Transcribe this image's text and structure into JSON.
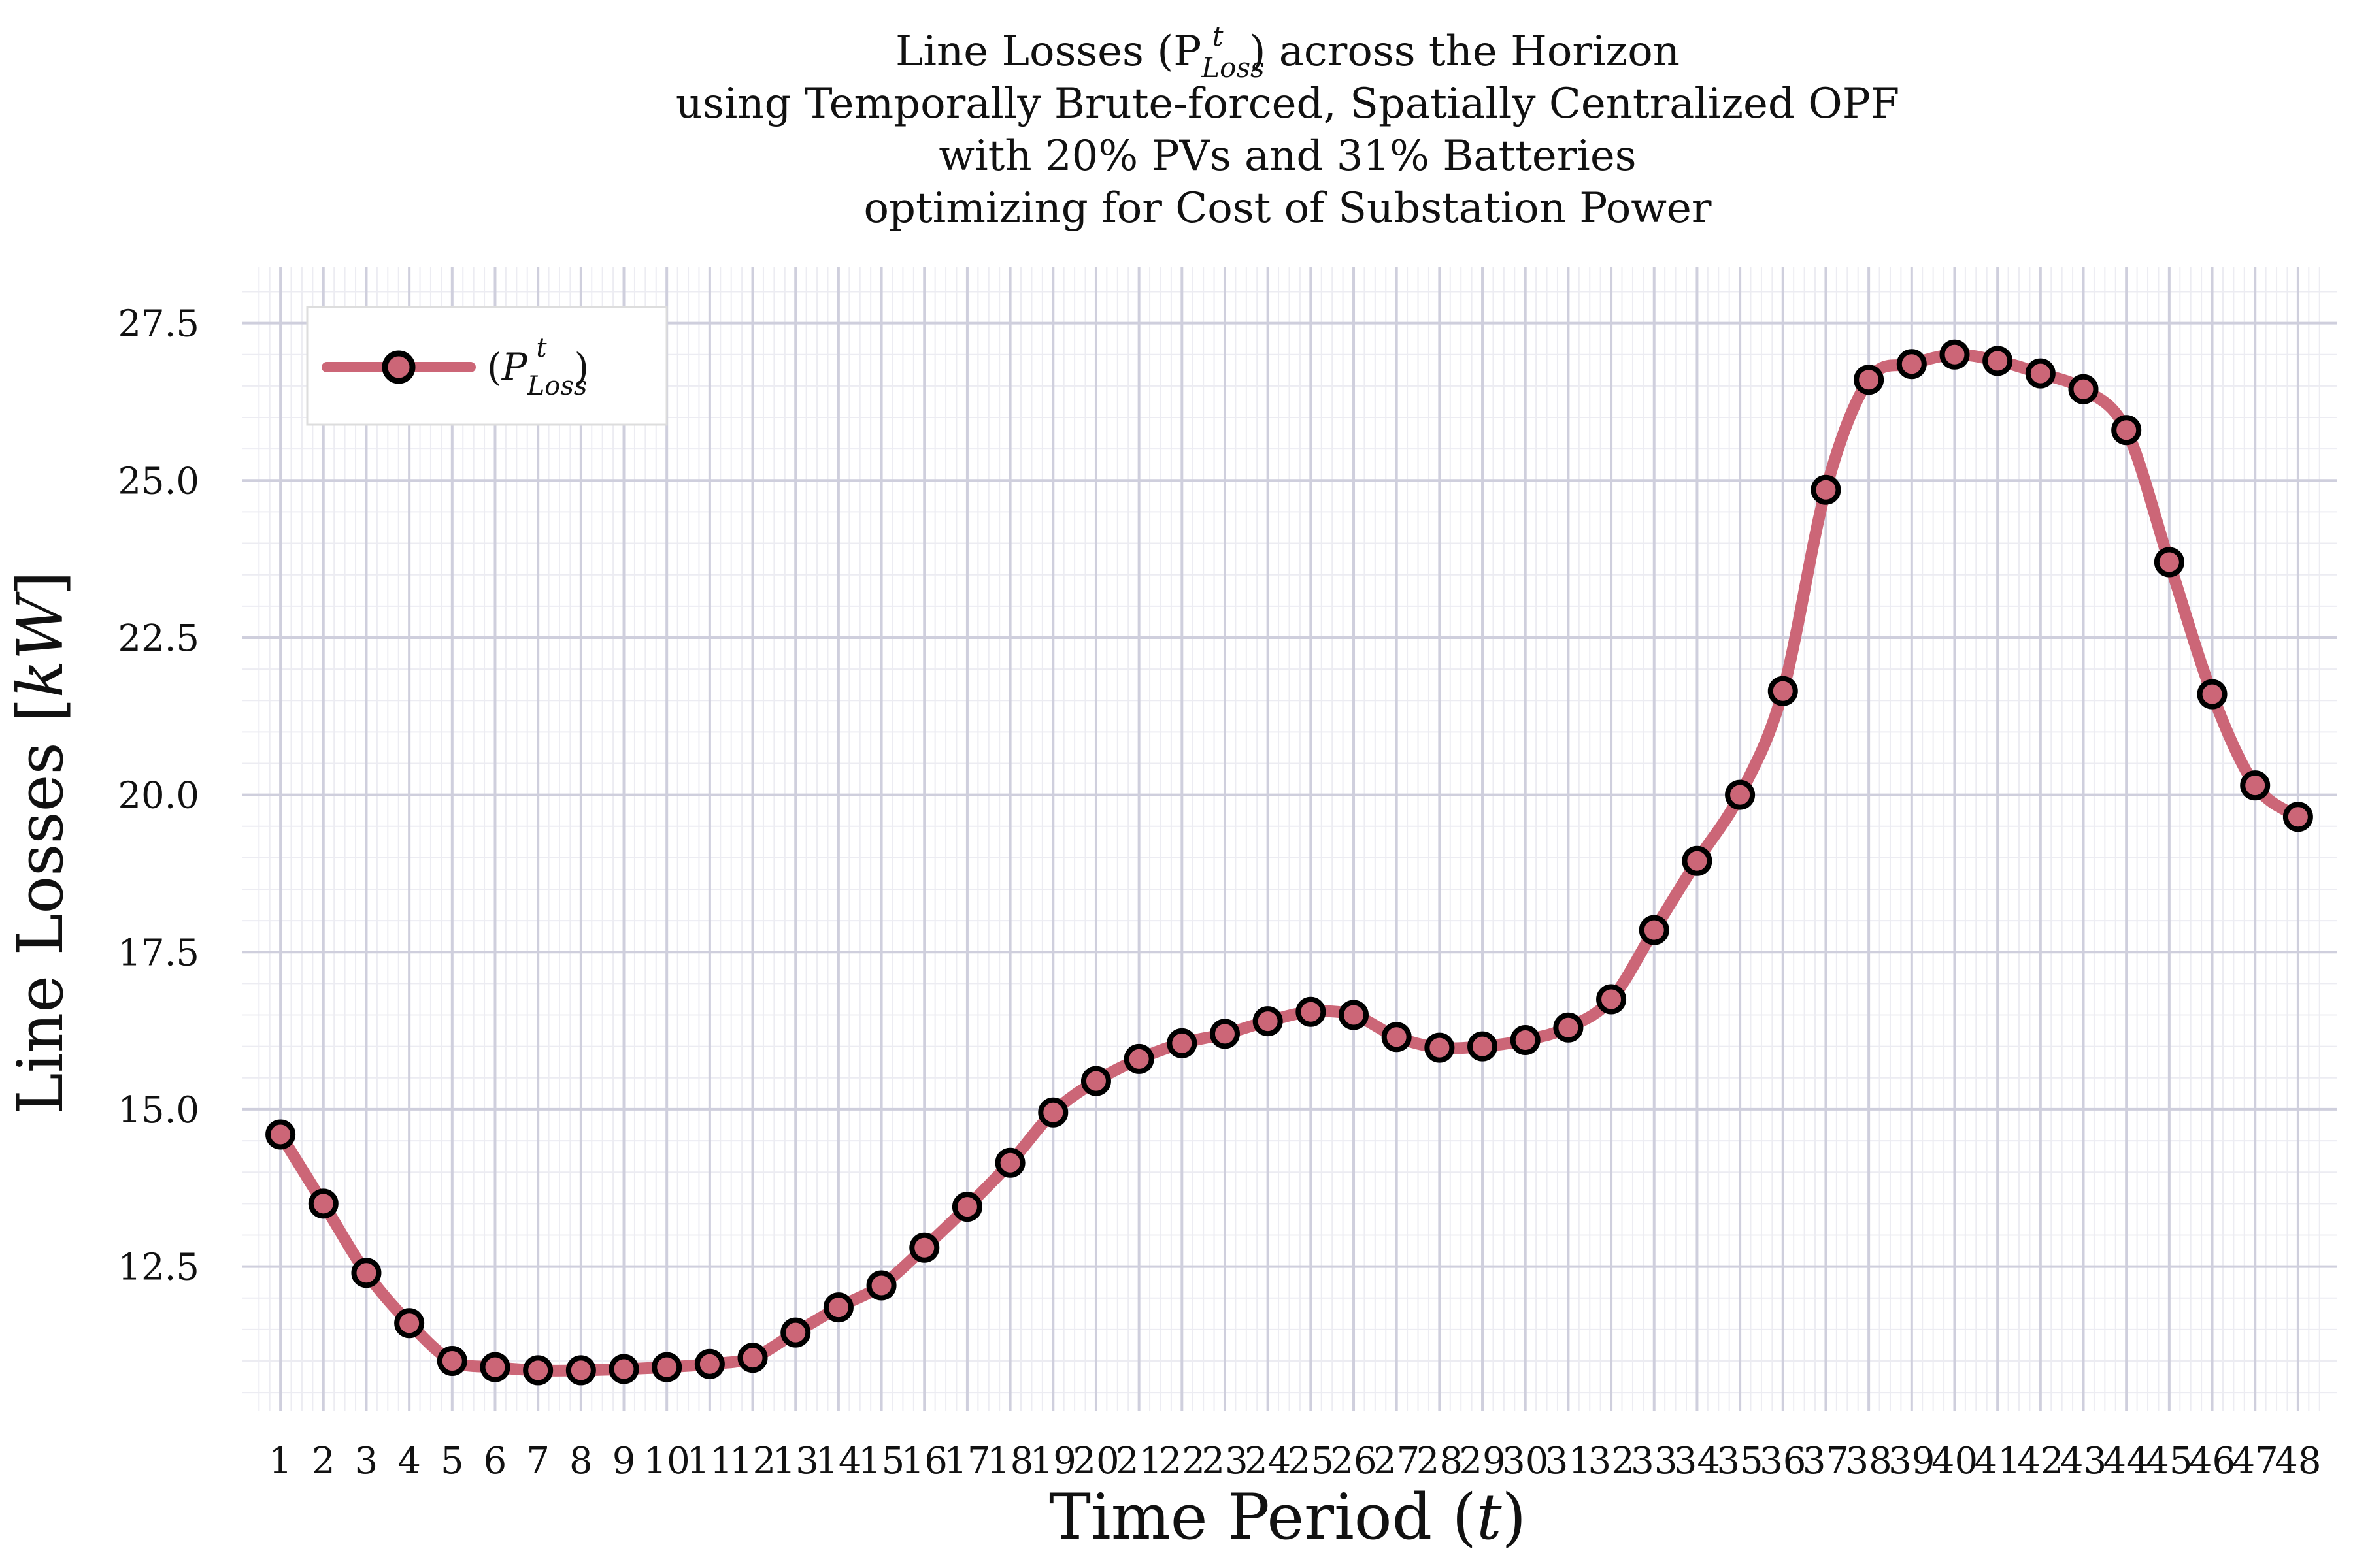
{
  "chart_data": {
    "type": "line",
    "title_lines": [
      "Line Losses (P",
      "using Temporally Brute-forced, Spatially Centralized OPF",
      "with 20% PVs and 31% Batteries",
      "optimizing for Cost of Substation Power"
    ],
    "title_suffix": ") across the Horizon",
    "title_sup": "t",
    "title_sub": "Loss",
    "xlabel": "Time Period (",
    "xlabel_var": "t",
    "xlabel_end": ")",
    "ylabel": "Line Losses [",
    "ylabel_var": "kW",
    "ylabel_end": "]",
    "x": [
      1,
      2,
      3,
      4,
      5,
      6,
      7,
      8,
      9,
      10,
      11,
      12,
      13,
      14,
      15,
      16,
      17,
      18,
      19,
      20,
      21,
      22,
      23,
      24,
      25,
      26,
      27,
      28,
      29,
      30,
      31,
      32,
      33,
      34,
      35,
      36,
      37,
      38,
      39,
      40,
      41,
      42,
      43,
      44,
      45,
      46,
      47,
      48
    ],
    "x_tick_labels": [
      "1",
      "2",
      "3",
      "4",
      "5",
      "6",
      "7",
      "8",
      "9",
      "10",
      "11",
      "12",
      "13",
      "14",
      "15",
      "16",
      "17",
      "18",
      "19",
      "20",
      "21",
      "22",
      "23",
      "24",
      "25",
      "26",
      "27",
      "28",
      "29",
      "30",
      "31",
      "32",
      "33",
      "34",
      "35",
      "36",
      "37",
      "38",
      "39",
      "40",
      "41",
      "42",
      "43",
      "44",
      "45",
      "46",
      "47",
      "48"
    ],
    "y_ticks": [
      12.5,
      15.0,
      17.5,
      20.0,
      22.5,
      25.0,
      27.5
    ],
    "y_tick_labels": [
      "12.5",
      "15.0",
      "17.5",
      "20.0",
      "22.5",
      "25.0",
      "27.5"
    ],
    "ylim": [
      10.2,
      28.4
    ],
    "xlim": [
      0.1,
      48.9
    ],
    "grid": true,
    "legend_position": "top-left",
    "series": [
      {
        "name": "P",
        "name_sup": "t",
        "name_sub": "Loss",
        "name_prefix": "(",
        "name_suffix": ")",
        "color": "#cc6677",
        "marker_edge": "#000000",
        "values": [
          14.6,
          13.5,
          12.4,
          11.6,
          11.0,
          10.9,
          10.85,
          10.85,
          10.87,
          10.9,
          10.95,
          11.05,
          11.45,
          11.85,
          12.2,
          12.8,
          13.45,
          14.15,
          14.95,
          15.45,
          15.8,
          16.05,
          16.2,
          16.4,
          16.55,
          16.5,
          16.15,
          15.98,
          16.0,
          16.1,
          16.3,
          16.75,
          17.85,
          18.95,
          20.0,
          21.65,
          24.85,
          26.6,
          26.85,
          27.0,
          26.9,
          26.7,
          26.45,
          25.8,
          23.7,
          21.6,
          20.15,
          19.65
        ]
      }
    ]
  },
  "colors": {
    "line": "#cc6677",
    "marker_edge": "#000000",
    "grid_major": "#cfcfdd",
    "grid_minor": "#ececf2",
    "legend_border": "#dddddd"
  }
}
